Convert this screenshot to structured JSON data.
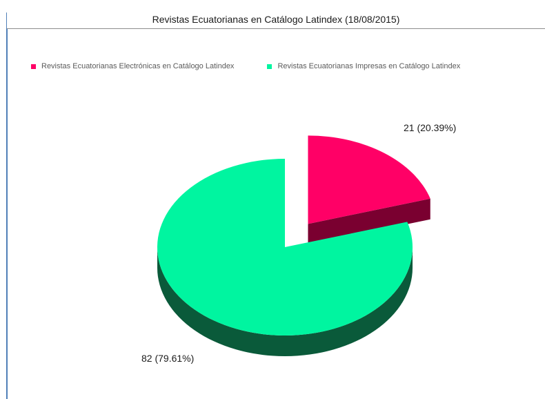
{
  "chart_data": {
    "type": "pie",
    "title": "Revistas Ecuatorianas en Catálogo Latindex (18/08/2015)",
    "legend_position": "top-left",
    "series": [
      {
        "name": "Revistas Ecuatorianas Electrónicas en Catálogo Latindex",
        "value": 21,
        "percent": 20.39,
        "label": "21 (20.39%)",
        "color": "#ff0066",
        "side_color": "#7a0030",
        "exploded": true
      },
      {
        "name": "Revistas Ecuatorianas Impresas en Catálogo Latindex",
        "value": 82,
        "percent": 79.61,
        "label": "82 (79.61%)",
        "color": "#00f5a0",
        "side_color": "#0a5a3a",
        "exploded": false
      }
    ]
  }
}
